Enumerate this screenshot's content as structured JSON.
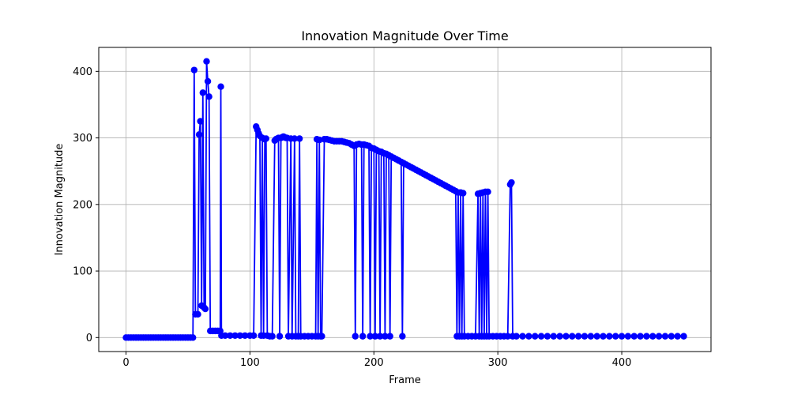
{
  "chart_data": {
    "type": "line",
    "title": "Innovation Magnitude Over Time",
    "xlabel": "Frame",
    "ylabel": "Innovation Magnitude",
    "xlim": [
      -22,
      472
    ],
    "ylim": [
      -21,
      436
    ],
    "xticks": [
      0,
      100,
      200,
      300,
      400
    ],
    "yticks": [
      0,
      100,
      200,
      300,
      400
    ],
    "grid": true,
    "series": [
      {
        "color": "#0000ff",
        "marker": "circle",
        "points": [
          [
            0,
            0
          ],
          [
            2,
            0
          ],
          [
            4,
            0
          ],
          [
            6,
            0
          ],
          [
            8,
            0
          ],
          [
            10,
            0
          ],
          [
            12,
            0
          ],
          [
            14,
            0
          ],
          [
            16,
            0
          ],
          [
            18,
            0
          ],
          [
            20,
            0
          ],
          [
            22,
            0
          ],
          [
            24,
            0
          ],
          [
            26,
            0
          ],
          [
            28,
            0
          ],
          [
            30,
            0
          ],
          [
            32,
            0
          ],
          [
            34,
            0
          ],
          [
            36,
            0
          ],
          [
            38,
            0
          ],
          [
            40,
            0
          ],
          [
            42,
            0
          ],
          [
            44,
            0
          ],
          [
            46,
            0
          ],
          [
            48,
            0
          ],
          [
            50,
            0
          ],
          [
            52,
            0
          ],
          [
            54,
            0
          ],
          [
            55,
            402
          ],
          [
            56,
            35
          ],
          [
            58,
            35
          ],
          [
            59,
            305
          ],
          [
            60,
            325
          ],
          [
            61,
            48
          ],
          [
            62,
            368
          ],
          [
            63,
            45
          ],
          [
            64,
            43
          ],
          [
            65,
            415
          ],
          [
            66,
            385
          ],
          [
            67,
            362
          ],
          [
            68,
            10
          ],
          [
            70,
            10
          ],
          [
            72,
            10
          ],
          [
            74,
            10
          ],
          [
            76,
            10
          ],
          [
            76.5,
            377
          ],
          [
            77,
            3
          ],
          [
            80,
            3
          ],
          [
            84,
            3
          ],
          [
            88,
            3
          ],
          [
            92,
            3
          ],
          [
            96,
            3
          ],
          [
            100,
            3
          ],
          [
            103,
            3
          ],
          [
            105,
            317
          ],
          [
            106,
            312
          ],
          [
            107,
            307
          ],
          [
            108,
            303
          ],
          [
            109,
            3
          ],
          [
            110,
            300
          ],
          [
            111,
            3
          ],
          [
            112,
            298
          ],
          [
            113,
            299
          ],
          [
            114,
            3
          ],
          [
            116,
            2
          ],
          [
            118,
            2
          ],
          [
            120,
            296
          ],
          [
            121,
            298
          ],
          [
            122,
            299
          ],
          [
            123,
            300
          ],
          [
            124,
            2
          ],
          [
            125,
            300
          ],
          [
            126,
            301
          ],
          [
            127,
            302
          ],
          [
            128,
            301
          ],
          [
            129,
            300
          ],
          [
            130,
            300
          ],
          [
            131,
            2
          ],
          [
            133,
            299
          ],
          [
            134,
            2
          ],
          [
            136,
            299
          ],
          [
            137,
            2
          ],
          [
            139,
            2
          ],
          [
            140,
            299
          ],
          [
            141,
            2
          ],
          [
            144,
            2
          ],
          [
            147,
            2
          ],
          [
            150,
            2
          ],
          [
            153,
            2
          ],
          [
            154,
            298
          ],
          [
            155,
            2
          ],
          [
            156,
            297
          ],
          [
            157,
            2
          ],
          [
            158,
            2
          ],
          [
            160,
            298
          ],
          [
            162,
            298
          ],
          [
            164,
            297
          ],
          [
            166,
            296
          ],
          [
            168,
            295
          ],
          [
            170,
            295
          ],
          [
            172,
            295
          ],
          [
            174,
            295
          ],
          [
            176,
            294
          ],
          [
            178,
            293
          ],
          [
            180,
            292
          ],
          [
            182,
            290
          ],
          [
            184,
            288
          ],
          [
            185,
            2
          ],
          [
            186,
            290
          ],
          [
            188,
            291
          ],
          [
            190,
            290
          ],
          [
            191,
            2
          ],
          [
            192,
            290
          ],
          [
            194,
            289
          ],
          [
            196,
            288
          ],
          [
            197,
            2
          ],
          [
            198,
            285
          ],
          [
            200,
            284
          ],
          [
            201,
            2
          ],
          [
            202,
            282
          ],
          [
            204,
            280
          ],
          [
            205,
            2
          ],
          [
            206,
            279
          ],
          [
            208,
            277
          ],
          [
            209,
            2
          ],
          [
            210,
            276
          ],
          [
            212,
            274
          ],
          [
            213,
            2
          ],
          [
            214,
            272
          ],
          [
            216,
            270
          ],
          [
            218,
            268
          ],
          [
            220,
            266
          ],
          [
            222,
            264
          ],
          [
            223,
            2
          ],
          [
            224,
            262
          ],
          [
            226,
            260
          ],
          [
            228,
            258
          ],
          [
            230,
            256
          ],
          [
            232,
            254
          ],
          [
            234,
            252
          ],
          [
            236,
            250
          ],
          [
            238,
            248
          ],
          [
            240,
            246
          ],
          [
            242,
            244
          ],
          [
            244,
            242
          ],
          [
            246,
            240
          ],
          [
            248,
            238
          ],
          [
            250,
            236
          ],
          [
            252,
            234
          ],
          [
            254,
            232
          ],
          [
            256,
            230
          ],
          [
            258,
            228
          ],
          [
            260,
            226
          ],
          [
            262,
            224
          ],
          [
            264,
            222
          ],
          [
            266,
            220
          ],
          [
            267,
            2
          ],
          [
            268,
            218
          ],
          [
            269,
            2
          ],
          [
            270,
            218
          ],
          [
            271,
            2
          ],
          [
            272,
            217
          ],
          [
            273,
            2
          ],
          [
            276,
            2
          ],
          [
            279,
            2
          ],
          [
            282,
            2
          ],
          [
            284,
            216
          ],
          [
            285,
            2
          ],
          [
            286,
            217
          ],
          [
            287,
            2
          ],
          [
            288,
            218
          ],
          [
            289,
            2
          ],
          [
            290,
            219
          ],
          [
            291,
            2
          ],
          [
            292,
            219
          ],
          [
            293,
            2
          ],
          [
            296,
            2
          ],
          [
            299,
            2
          ],
          [
            302,
            2
          ],
          [
            305,
            2
          ],
          [
            308,
            2
          ],
          [
            310,
            230
          ],
          [
            311,
            233
          ],
          [
            312,
            2
          ],
          [
            315,
            2
          ],
          [
            320,
            2
          ],
          [
            325,
            2
          ],
          [
            330,
            2
          ],
          [
            335,
            2
          ],
          [
            340,
            2
          ],
          [
            345,
            2
          ],
          [
            350,
            2
          ],
          [
            355,
            2
          ],
          [
            360,
            2
          ],
          [
            365,
            2
          ],
          [
            370,
            2
          ],
          [
            375,
            2
          ],
          [
            380,
            2
          ],
          [
            385,
            2
          ],
          [
            390,
            2
          ],
          [
            395,
            2
          ],
          [
            400,
            2
          ],
          [
            405,
            2
          ],
          [
            410,
            2
          ],
          [
            415,
            2
          ],
          [
            420,
            2
          ],
          [
            425,
            2
          ],
          [
            430,
            2
          ],
          [
            435,
            2
          ],
          [
            440,
            2
          ],
          [
            445,
            2
          ],
          [
            450,
            2
          ]
        ]
      }
    ]
  }
}
